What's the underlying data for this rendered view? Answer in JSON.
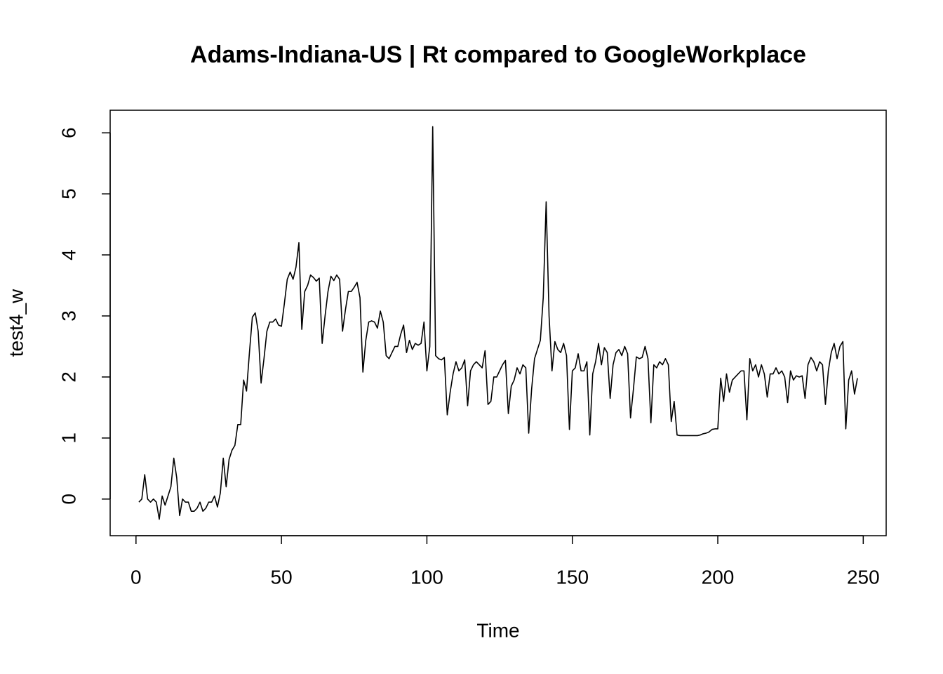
{
  "chart_data": {
    "type": "line",
    "title": "Adams-Indiana-US | Rt compared to GoogleWorkplace",
    "x_label": "Time",
    "y_label": "test4_w",
    "x": [
      1,
      2,
      3,
      4,
      5,
      6,
      7,
      8,
      9,
      10,
      11,
      12,
      13,
      14,
      15,
      16,
      17,
      18,
      19,
      20,
      21,
      22,
      23,
      24,
      25,
      26,
      27,
      28,
      29,
      30,
      31,
      32,
      33,
      34,
      35,
      36,
      37,
      38,
      39,
      40,
      41,
      42,
      43,
      44,
      45,
      46,
      47,
      48,
      49,
      50,
      51,
      52,
      53,
      54,
      55,
      56,
      57,
      58,
      59,
      60,
      61,
      62,
      63,
      64,
      65,
      66,
      67,
      68,
      69,
      70,
      71,
      72,
      73,
      74,
      75,
      76,
      77,
      78,
      79,
      80,
      81,
      82,
      83,
      84,
      85,
      86,
      87,
      88,
      89,
      90,
      91,
      92,
      93,
      94,
      95,
      96,
      97,
      98,
      99,
      100,
      101,
      102,
      103,
      104,
      105,
      106,
      107,
      108,
      109,
      110,
      111,
      112,
      113,
      114,
      115,
      116,
      117,
      118,
      119,
      120,
      121,
      122,
      123,
      124,
      125,
      126,
      127,
      128,
      129,
      130,
      131,
      132,
      133,
      134,
      135,
      136,
      137,
      138,
      139,
      140,
      141,
      142,
      143,
      144,
      145,
      146,
      147,
      148,
      149,
      150,
      151,
      152,
      153,
      154,
      155,
      156,
      157,
      158,
      159,
      160,
      161,
      162,
      163,
      164,
      165,
      166,
      167,
      168,
      169,
      170,
      171,
      172,
      173,
      174,
      175,
      176,
      177,
      178,
      179,
      180,
      181,
      182,
      183,
      184,
      185,
      186,
      187,
      188,
      189,
      190,
      191,
      192,
      193,
      194,
      195,
      196,
      197,
      198,
      199,
      200,
      201,
      202,
      203,
      204,
      205,
      206,
      207,
      208,
      209,
      210,
      211,
      212,
      213,
      214,
      215,
      216,
      217,
      218,
      219,
      220,
      221,
      222,
      223,
      224,
      225,
      226,
      227,
      228,
      229,
      230,
      231,
      232,
      233,
      234,
      235,
      236,
      237,
      238,
      239,
      240,
      241,
      242,
      243,
      244,
      245,
      246,
      247,
      248
    ],
    "series": [
      {
        "name": "test4_w",
        "color": "#000000",
        "values": [
          -0.05,
          0,
          0.4,
          0,
          -0.05,
          0,
          -0.05,
          -0.33,
          0.05,
          -0.1,
          0.05,
          0.2,
          0.67,
          0.35,
          -0.27,
          0,
          -0.05,
          -0.05,
          -0.2,
          -0.2,
          -0.15,
          -0.05,
          -0.2,
          -0.15,
          -0.05,
          -0.05,
          0.05,
          -0.13,
          0.1,
          0.67,
          0.2,
          0.65,
          0.8,
          0.88,
          1.22,
          1.22,
          1.95,
          1.77,
          2.4,
          2.98,
          3.05,
          2.75,
          1.9,
          2.3,
          2.75,
          2.9,
          2.9,
          2.95,
          2.85,
          2.83,
          3.2,
          3.6,
          3.72,
          3.6,
          3.8,
          4.2,
          2.78,
          3.4,
          3.5,
          3.67,
          3.63,
          3.57,
          3.62,
          2.55,
          3,
          3.4,
          3.65,
          3.58,
          3.67,
          3.6,
          2.75,
          3.1,
          3.4,
          3.4,
          3.47,
          3.55,
          3.3,
          2.08,
          2.6,
          2.9,
          2.92,
          2.9,
          2.8,
          3.08,
          2.9,
          2.35,
          2.3,
          2.4,
          2.5,
          2.5,
          2.7,
          2.85,
          2.4,
          2.6,
          2.45,
          2.55,
          2.52,
          2.55,
          2.9,
          2.1,
          2.5,
          6.1,
          2.35,
          2.3,
          2.28,
          2.32,
          1.38,
          1.75,
          2.05,
          2.25,
          2.1,
          2.15,
          2.28,
          1.53,
          2.1,
          2.2,
          2.25,
          2.2,
          2.15,
          2.43,
          1.55,
          1.6,
          2,
          2,
          2.1,
          2.2,
          2.27,
          1.4,
          1.85,
          1.95,
          2.15,
          2.05,
          2.2,
          2.15,
          1.08,
          1.8,
          2.3,
          2.45,
          2.6,
          3.3,
          4.87,
          3,
          2.1,
          2.58,
          2.45,
          2.4,
          2.55,
          2.35,
          1.14,
          2.1,
          2.15,
          2.38,
          2.1,
          2.1,
          2.25,
          1.05,
          2.05,
          2.25,
          2.55,
          2.2,
          2.48,
          2.4,
          1.65,
          2.2,
          2.4,
          2.45,
          2.35,
          2.5,
          2.38,
          1.33,
          1.8,
          2.33,
          2.3,
          2.32,
          2.5,
          2.3,
          1.25,
          2.2,
          2.15,
          2.25,
          2.2,
          2.3,
          2.2,
          1.27,
          1.6,
          1.05,
          1.04,
          1.04,
          1.04,
          1.04,
          1.04,
          1.04,
          1.04,
          1.05,
          1.07,
          1.08,
          1.1,
          1.14,
          1.15,
          1.15,
          1.98,
          1.6,
          2.05,
          1.75,
          1.95,
          2,
          2.05,
          2.1,
          2.1,
          1.3,
          2.3,
          2.1,
          2.2,
          2,
          2.2,
          2.05,
          1.67,
          2.05,
          2.05,
          2.15,
          2.05,
          2.1,
          2,
          1.58,
          2.1,
          1.95,
          2.02,
          2,
          2.02,
          1.65,
          2.2,
          2.32,
          2.25,
          2.1,
          2.25,
          2.2,
          1.55,
          2.1,
          2.4,
          2.55,
          2.3,
          2.5,
          2.58,
          1.15,
          1.95,
          2.1,
          1.72,
          1.98
        ]
      }
    ],
    "xlim": [
      -8.88,
      257.88
    ],
    "xticks": [
      0,
      50,
      100,
      150,
      200,
      250
    ],
    "ylim": [
      -0.6,
      6.37
    ],
    "yticks": [
      0,
      1,
      2,
      3,
      4,
      5,
      6
    ],
    "grid": false
  }
}
